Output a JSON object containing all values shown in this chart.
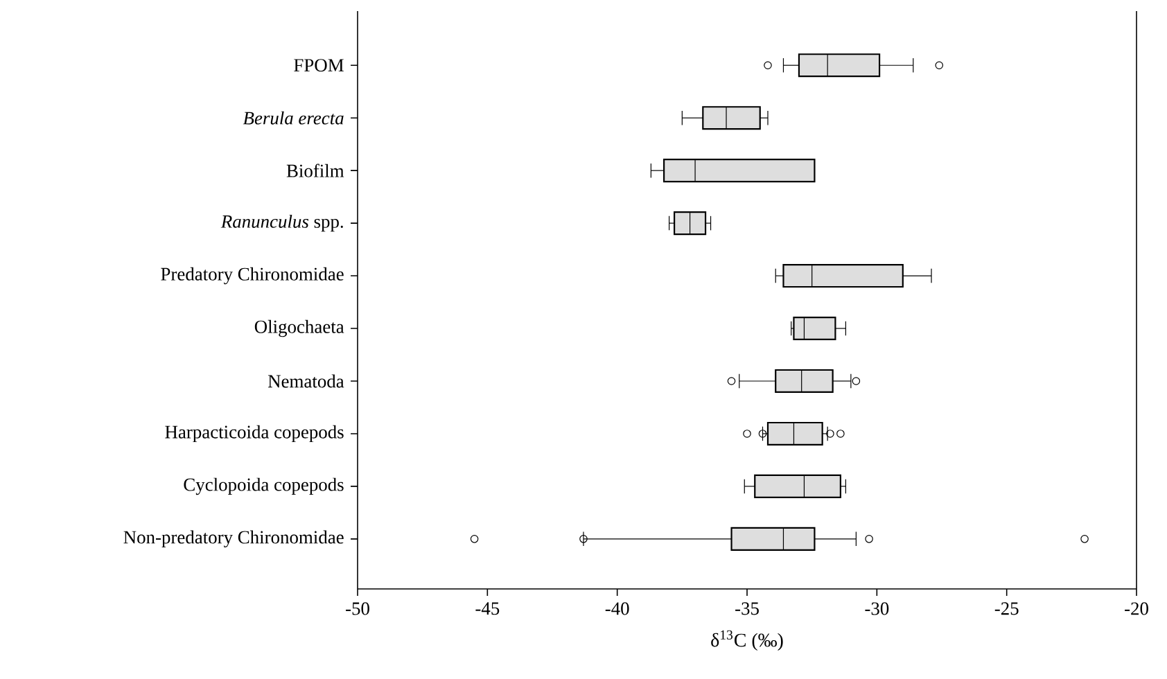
{
  "chart_data": {
    "type": "box",
    "orientation": "horizontal",
    "color": "#dedede",
    "categories": [
      "FPOM",
      "*Berula erecta*",
      "Biofilm",
      "*Ranunculus* spp.",
      "Predatory Chironomidae",
      "Oligochaeta",
      "Nematoda",
      "Harpacticoida copepods",
      "Cyclopoida copepods",
      "Non-predatory Chironomidae"
    ],
    "boxes": [
      {
        "low": -33.6,
        "q1": -33.0,
        "median": -31.9,
        "q3": -29.9,
        "high": -28.6,
        "outliers": [
          -34.2,
          -27.6
        ]
      },
      {
        "low": -37.5,
        "q1": -36.7,
        "median": -35.8,
        "q3": -34.5,
        "high": -34.2
      },
      {
        "low": -38.7,
        "q1": -38.2,
        "median": -37.0,
        "q3": -32.4,
        "high": -32.4
      },
      {
        "low": -38.0,
        "q1": -37.8,
        "median": -37.2,
        "q3": -36.6,
        "high": -36.4
      },
      {
        "low": -33.9,
        "q1": -33.6,
        "median": -32.5,
        "q3": -29.0,
        "high": -27.9
      },
      {
        "low": -33.3,
        "q1": -33.2,
        "median": -32.8,
        "q3": -31.6,
        "high": -31.2
      },
      {
        "low": -35.3,
        "q1": -33.9,
        "median": -32.9,
        "q3": -31.7,
        "high": -31.0,
        "outliers": [
          -35.6,
          -30.8
        ]
      },
      {
        "low": -34.4,
        "q1": -34.2,
        "median": -33.2,
        "q3": -32.1,
        "high": -31.9,
        "outliers": [
          -35.0,
          -34.4,
          -31.8,
          -31.4
        ]
      },
      {
        "low": -35.1,
        "q1": -34.7,
        "median": -32.8,
        "q3": -31.4,
        "high": -31.2
      },
      {
        "low": -41.3,
        "q1": -35.6,
        "median": -33.6,
        "q3": -32.4,
        "high": -30.8,
        "outliers": [
          -45.5,
          -41.3,
          -30.3,
          -22.0
        ]
      }
    ],
    "xlim": [
      -50,
      -20
    ],
    "xticks": [
      -50,
      -45,
      -40,
      -35,
      -30,
      -25,
      -20
    ],
    "xlabel": "δ$^{13}$C (‰)"
  }
}
